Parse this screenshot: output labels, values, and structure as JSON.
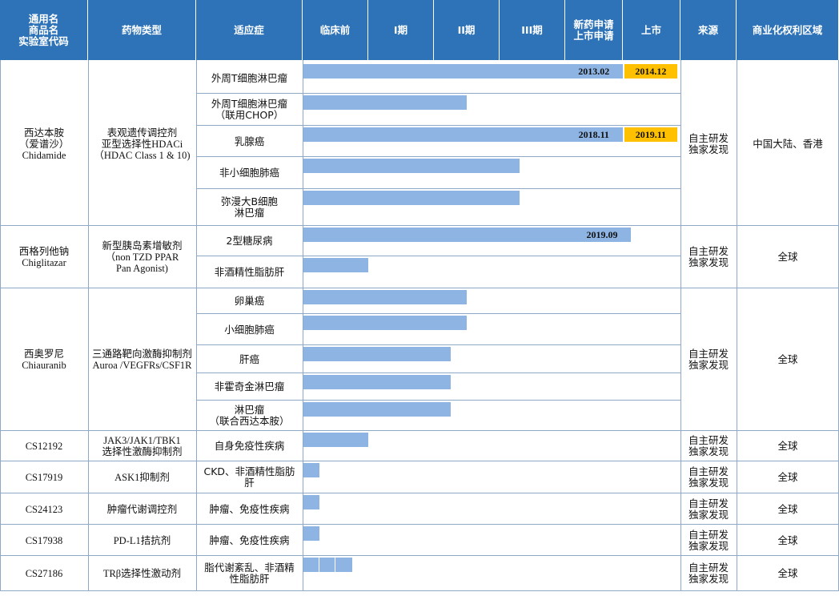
{
  "colors": {
    "header_bg": "#2E73B8",
    "bar": "#8DB4E2",
    "launch": "#FFC000",
    "grid": "#8EA9C7"
  },
  "headers": {
    "name": "通用名\n商品名\n实验室代码",
    "type": "药物类型",
    "indication": "适应症",
    "preclinical": "临床前",
    "p1": "I期",
    "p2": "II期",
    "p3": "III期",
    "nda": "新药申请\n上市申请",
    "market": "上市",
    "source": "来源",
    "rights": "商业化权利区域"
  },
  "groups": [
    {
      "name": "西达本胺\n（爱谱沙）\nChidamide",
      "type": "表观遗传调控剂\n亚型选择性HDACi\n（HDAC Class 1 & 10)",
      "source": "自主研发\n独家发现",
      "rights": "中国大陆、香港"
    },
    {
      "name": "西格列他钠\nChiglitazar",
      "type": "新型胰岛素增敏剂\n（non TZD PPAR\nPan Agonist)",
      "source": "自主研发\n独家发现",
      "rights": "全球"
    },
    {
      "name": "西奥罗尼\nChiauranib",
      "type": "三通路靶向激酶抑制剂\nAuroa /VEGFRs/CSF1R",
      "source": "自主研发\n独家发现",
      "rights": "全球"
    },
    {
      "name": "CS12192",
      "type": "JAK3/JAK1/TBK1\n选择性激酶抑制剂",
      "source": "自主研发\n独家发现",
      "rights": "全球"
    },
    {
      "name": "CS17919",
      "type": "ASK1抑制剂",
      "source": "自主研发\n独家发现",
      "rights": "全球"
    },
    {
      "name": "CS24123",
      "type": "肿瘤代谢调控剂",
      "source": "自主研发\n独家发现",
      "rights": "全球"
    },
    {
      "name": "CS17938",
      "type": "PD-L1拮抗剂",
      "source": "自主研发\n独家发现",
      "rights": "全球"
    },
    {
      "name": "CS27186",
      "type": "TRβ选择性激动剂",
      "source": "自主研发\n独家发现",
      "rights": "全球"
    }
  ],
  "chart_data": {
    "type": "bar",
    "stages": [
      "临床前",
      "I期",
      "II期",
      "III期",
      "新药申请\n上市申请",
      "上市"
    ],
    "categories": [
      "外周T细胞淋巴瘤",
      "外周T细胞淋巴瘤\n（联用CHOP）",
      "乳腺癌",
      "非小细胞肺癌",
      "弥漫大B细胞\n淋巴瘤",
      "2型糖尿病",
      "非酒精性脂肪肝",
      "卵巢癌",
      "小细胞肺癌",
      "肝癌",
      "非霍奇金淋巴瘤",
      "淋巴瘤\n（联合西达本胺）",
      "自身免疫性疾病",
      "CKD、非酒精性脂肪\n肝",
      "肿瘤、免疫性疾病",
      "肿瘤、免疫性疾病",
      "脂代谢紊乱、非酒精\n性脂肪肝"
    ],
    "values": [
      5,
      2.5,
      5,
      3.3,
      3.3,
      5,
      1,
      2.5,
      2.5,
      2.25,
      2.25,
      2.25,
      1,
      0.25,
      0.25,
      0.25,
      0.75
    ],
    "bar_labels": [
      "2013.02",
      "",
      "2018.11",
      "",
      "",
      "2019.09",
      "",
      "",
      "",
      "",
      "",
      "",
      "",
      "",
      "",
      "",
      ""
    ],
    "launch_labels": [
      "2014.12",
      "",
      "2019.11",
      "",
      "",
      "",
      "",
      "",
      "",
      "",
      "",
      "",
      "",
      "",
      "",
      "",
      ""
    ],
    "xlim": [
      0,
      6
    ]
  }
}
